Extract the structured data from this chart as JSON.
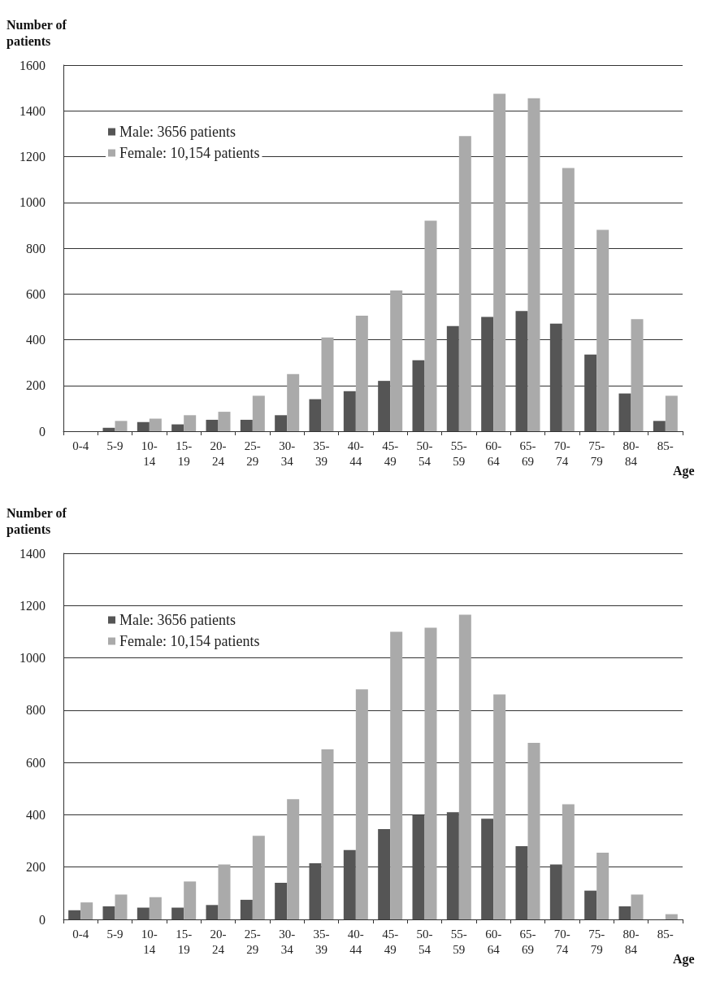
{
  "chart_data": [
    {
      "type": "bar",
      "ylabel": "Number of patients",
      "xlabel": "Age",
      "categories": [
        "0-4",
        "5-9",
        "10-14",
        "15-19",
        "20-24",
        "25-29",
        "30-34",
        "35-39",
        "40-44",
        "45-49",
        "50-54",
        "55-59",
        "60-64",
        "65-69",
        "70-74",
        "75-79",
        "80-84",
        "85-"
      ],
      "series": [
        {
          "name": "Male: 3656 patients",
          "color": "#555555",
          "values": [
            null,
            15,
            40,
            30,
            50,
            50,
            70,
            140,
            175,
            220,
            310,
            460,
            500,
            525,
            470,
            335,
            165,
            45
          ]
        },
        {
          "name": "Female: 10,154 patients",
          "color": "#aaaaaa",
          "values": [
            null,
            45,
            55,
            70,
            85,
            155,
            250,
            410,
            505,
            615,
            920,
            1290,
            1475,
            1455,
            1150,
            880,
            490,
            155
          ]
        }
      ],
      "ylim": [
        0,
        1600
      ],
      "yticks": [
        0,
        200,
        400,
        600,
        800,
        1000,
        1200,
        1400,
        1600
      ],
      "grid": "y",
      "legend": "top left"
    },
    {
      "type": "bar",
      "ylabel": "Number of patients",
      "xlabel": "Age",
      "categories": [
        "0-4",
        "5-9",
        "10-14",
        "15-19",
        "20-24",
        "25-29",
        "30-34",
        "35-39",
        "40-44",
        "45-49",
        "50-54",
        "55-59",
        "60-64",
        "65-69",
        "70-74",
        "75-79",
        "80-84",
        "85-"
      ],
      "series": [
        {
          "name": "Male: 3656 patients",
          "color": "#555555",
          "values": [
            35,
            50,
            45,
            45,
            55,
            75,
            140,
            215,
            265,
            345,
            400,
            410,
            385,
            280,
            210,
            110,
            50,
            null
          ]
        },
        {
          "name": "Female: 10,154 patients",
          "color": "#aaaaaa",
          "values": [
            65,
            95,
            85,
            145,
            210,
            320,
            460,
            650,
            880,
            1100,
            1115,
            1165,
            860,
            675,
            440,
            255,
            95,
            20
          ]
        }
      ],
      "ylim": [
        0,
        1400
      ],
      "yticks": [
        0,
        200,
        400,
        600,
        800,
        1000,
        1200,
        1400
      ],
      "grid": "y",
      "legend": "top left"
    }
  ]
}
